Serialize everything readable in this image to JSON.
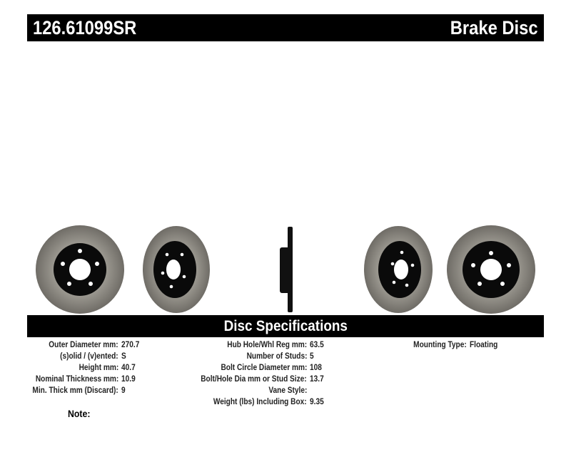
{
  "header": {
    "part_number": "126.61099SR",
    "title": "Brake Disc"
  },
  "spec_section_title": "Disc Specifications",
  "specs": {
    "col1": [
      {
        "label": "Outer Diameter mm:",
        "value": "270.7"
      },
      {
        "label": "(s)olid / (v)ented:",
        "value": "S"
      },
      {
        "label": "Height mm:",
        "value": "40.7"
      },
      {
        "label": "Nominal Thickness mm:",
        "value": "10.9"
      },
      {
        "label": "Min. Thick mm (Discard):",
        "value": "9"
      }
    ],
    "col2": [
      {
        "label": "Hub Hole/Whl Reg mm:",
        "value": "63.5"
      },
      {
        "label": "Number of Studs:",
        "value": "5"
      },
      {
        "label": "Bolt Circle Diameter mm:",
        "value": "108"
      },
      {
        "label": "Bolt/Hole Dia mm or Stud Size:",
        "value": "13.7"
      },
      {
        "label": "Vane Style:",
        "value": ""
      },
      {
        "label": "Weight (lbs) Including Box:",
        "value": "9.35"
      }
    ],
    "col3": [
      {
        "label": "Mounting Type:",
        "value": "Floating"
      }
    ]
  },
  "note_label": "Note:",
  "colors": {
    "bar": "#000000",
    "rotor_face": "#8a8781",
    "hat": "#0a0a0a"
  }
}
